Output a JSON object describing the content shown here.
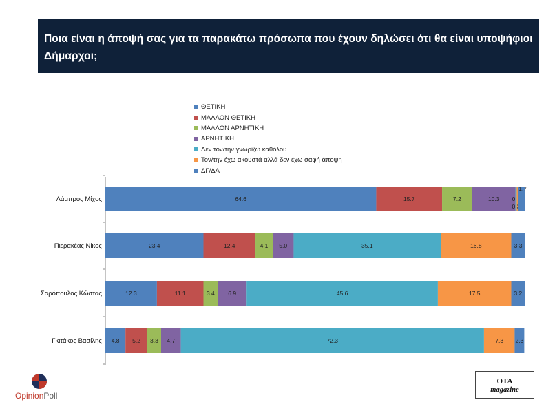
{
  "title": "Ποια είναι η άποψή σας για τα παρακάτω πρόσωπα που έχουν δηλώσει ότι θα είναι υποψήφιοι Δήμαρχοι;",
  "logos": {
    "left_brand_opinion": "Opinion",
    "left_brand_poll": "Poll",
    "right_brand_line1": "OTA",
    "right_brand_line2": "magazine"
  },
  "chart_data": {
    "type": "bar",
    "orientation": "horizontal",
    "stacked": true,
    "title": "",
    "xlabel": "",
    "ylabel": "",
    "xlim": [
      0,
      100
    ],
    "legend_position": "top",
    "categories": [
      "Λάμπρος Μίχος",
      "Πιερακέας Νίκος",
      "Σαρόπουλος Κώστας",
      "Γκιτάκος Βασίλης"
    ],
    "series": [
      {
        "name": "ΘΕΤΙΚΗ",
        "color": "#4f81bd",
        "values": [
          64.6,
          23.4,
          12.3,
          4.8
        ],
        "labels": [
          "64.6",
          "23.4",
          "12.3",
          "4.8"
        ]
      },
      {
        "name": "ΜΑΛΛΟΝ ΘΕΤΙΚΗ",
        "color": "#c0504d",
        "values": [
          15.7,
          12.4,
          11.1,
          5.2
        ],
        "labels": [
          "15.7",
          "12.4",
          "11.1",
          "5.2"
        ]
      },
      {
        "name": "ΜΑΛΛΟΝ ΑΡΝΗΤΙΚΗ",
        "color": "#9bbb59",
        "values": [
          7.2,
          4.1,
          3.4,
          3.3
        ],
        "labels": [
          "7.2",
          "4.1",
          "3.4",
          "3.3"
        ]
      },
      {
        "name": "ΑΡΝΗΤΙΚΗ",
        "color": "#8064a2",
        "values": [
          10.3,
          5.0,
          6.9,
          4.7
        ],
        "labels": [
          "10.3",
          "5.0",
          "6.9",
          "4.7"
        ]
      },
      {
        "name": "Δεν τον/την γνωρίζω καθόλου",
        "color": "#4bacc6",
        "values": [
          0.3,
          35.1,
          45.6,
          72.3
        ],
        "labels": [
          "0.3",
          "35.1",
          "45.6",
          "72.3"
        ]
      },
      {
        "name": "Τον/την έχω ακουστά αλλά δεν έχω σαφή άποψη",
        "color": "#f79646",
        "values": [
          0.3,
          16.8,
          17.5,
          7.3
        ],
        "labels": [
          "0.3",
          "16.8",
          "17.5",
          "7.3"
        ]
      },
      {
        "name": "ΔΓ/ΔΑ",
        "color": "#4f81bd",
        "values": [
          1.7,
          3.3,
          3.2,
          2.3
        ],
        "labels": [
          "1.7",
          "3.3",
          "3.2",
          "2.3"
        ]
      }
    ]
  }
}
